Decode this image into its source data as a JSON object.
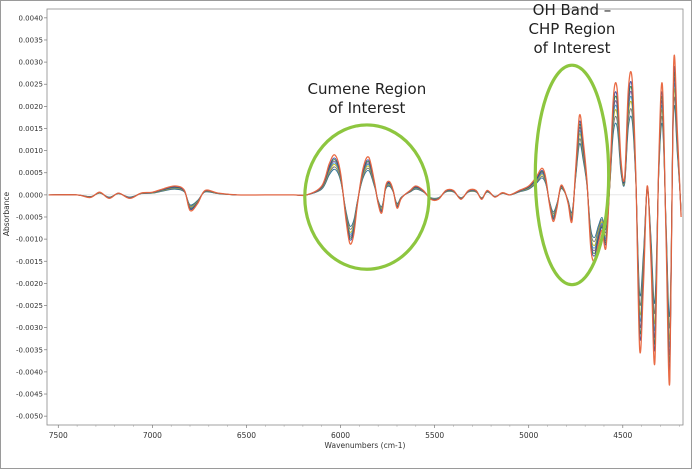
{
  "chart_data": {
    "type": "line",
    "title": "",
    "xlabel": "Wavenumbers (cm-1)",
    "ylabel": "Absorbance",
    "xlim": [
      7560,
      4180
    ],
    "ylim": [
      -0.0052,
      0.0042
    ],
    "x_reversed": true,
    "grid": false,
    "xticks": [
      7500,
      7000,
      6500,
      6000,
      5500,
      5000,
      4500
    ],
    "xtick_labels": [
      "7500",
      "7000",
      "6500",
      "6000",
      "5500",
      "5000",
      "4500"
    ],
    "yticks": [
      0.004,
      0.0035,
      0.003,
      0.0025,
      0.002,
      0.0015,
      0.001,
      0.0005,
      0.0,
      -0.0005,
      -0.001,
      -0.0015,
      -0.002,
      -0.0025,
      -0.003,
      -0.0035,
      -0.004,
      -0.0045,
      -0.005
    ],
    "ytick_labels": [
      "0.0040",
      "0.0035",
      "0.0030",
      "0.0025",
      "0.0020",
      "0.0015",
      "0.0010",
      "0.0005",
      "0.0000",
      "-0.0005",
      "-0.0010",
      "-0.0015",
      "-0.0020",
      "-0.0025",
      "-0.0030",
      "-0.0035",
      "-0.0040",
      "-0.0045",
      "-0.0050"
    ],
    "series_colors": [
      "#e8643c",
      "#2c3e9e",
      "#3a8a3a",
      "#7b4aa0",
      "#2f9bc2",
      "#c8b400",
      "#6b6b6b",
      "#1f6b8f"
    ],
    "base_x": [
      7550,
      7400,
      7330,
      7280,
      7230,
      7180,
      7120,
      7060,
      7000,
      6940,
      6880,
      6830,
      6800,
      6760,
      6720,
      6650,
      6550,
      6400,
      6250,
      6180,
      6100,
      6060,
      6030,
      6000,
      5970,
      5950,
      5930,
      5910,
      5880,
      5850,
      5820,
      5800,
      5780,
      5760,
      5740,
      5720,
      5700,
      5680,
      5660,
      5630,
      5600,
      5560,
      5520,
      5480,
      5440,
      5400,
      5360,
      5320,
      5280,
      5250,
      5220,
      5180,
      5140,
      5100,
      5050,
      5000,
      4960,
      4930,
      4910,
      4890,
      4870,
      4850,
      4830,
      4810,
      4790,
      4770,
      4750,
      4730,
      4710,
      4690,
      4670,
      4650,
      4630,
      4610,
      4590,
      4570,
      4550,
      4530,
      4510,
      4490,
      4470,
      4450,
      4430,
      4410,
      4390,
      4370,
      4350,
      4330,
      4310,
      4290,
      4270,
      4250,
      4230,
      4210,
      4190
    ],
    "base_y": [
      0,
      0,
      -6e-05,
      6e-05,
      -8e-05,
      4e-05,
      -8e-05,
      4e-05,
      6e-05,
      0.00014,
      0.0002,
      0.0001,
      -0.00035,
      -0.0002,
      0.0001,
      4e-05,
      0,
      0,
      0,
      0,
      0.0002,
      0.0007,
      0.0009,
      0.0005,
      -0.0006,
      -0.0011,
      -0.0009,
      -0.0002,
      0.0006,
      0.00085,
      0.0003,
      -0.0002,
      -0.0004,
      0.0002,
      0.0003,
      0.0001,
      -0.0003,
      -0.0001,
      0,
      0.0001,
      0.0002,
      0.0001,
      -0.0001,
      -0.0001,
      0.0001,
      0.0001,
      -0.0001,
      0.0001,
      0.0001,
      -0.0001,
      0.0001,
      -5e-05,
      5e-05,
      0,
      0.0001,
      0.0002,
      0.0004,
      0.0006,
      0.0004,
      -0.0002,
      -0.0006,
      -0.0003,
      0.0002,
      0.0001,
      -0.0002,
      -0.0006,
      0.0006,
      0.0018,
      0.0012,
      0.0003,
      -0.0012,
      -0.0015,
      -0.0011,
      -0.0008,
      -0.0012,
      0.0002,
      0.0022,
      0.0024,
      0.0008,
      0.0004,
      0.0024,
      0.0026,
      0.0003,
      -0.0035,
      -0.002,
      0.0002,
      -0.0015,
      -0.0038,
      0.0005,
      0.0025,
      -0.001,
      -0.0042,
      0.0029,
      0.0014,
      -0.0005
    ],
    "scale_factors": [
      1.0,
      0.92,
      0.88,
      0.84,
      0.8,
      0.76,
      0.7,
      0.64
    ]
  },
  "annotations": [
    {
      "lines": [
        "Cumene Region",
        "of Interest"
      ],
      "circle_center": [
        5860,
        -5e-05
      ],
      "circle_x_radius": 330,
      "circle_y_radius": 0.00163
    },
    {
      "lines": [
        "OH Band –",
        "CHP Region",
        "of Interest"
      ],
      "circle_center": [
        4770,
        0.00045
      ],
      "circle_x_radius": 195,
      "circle_y_radius": 0.00248
    }
  ]
}
